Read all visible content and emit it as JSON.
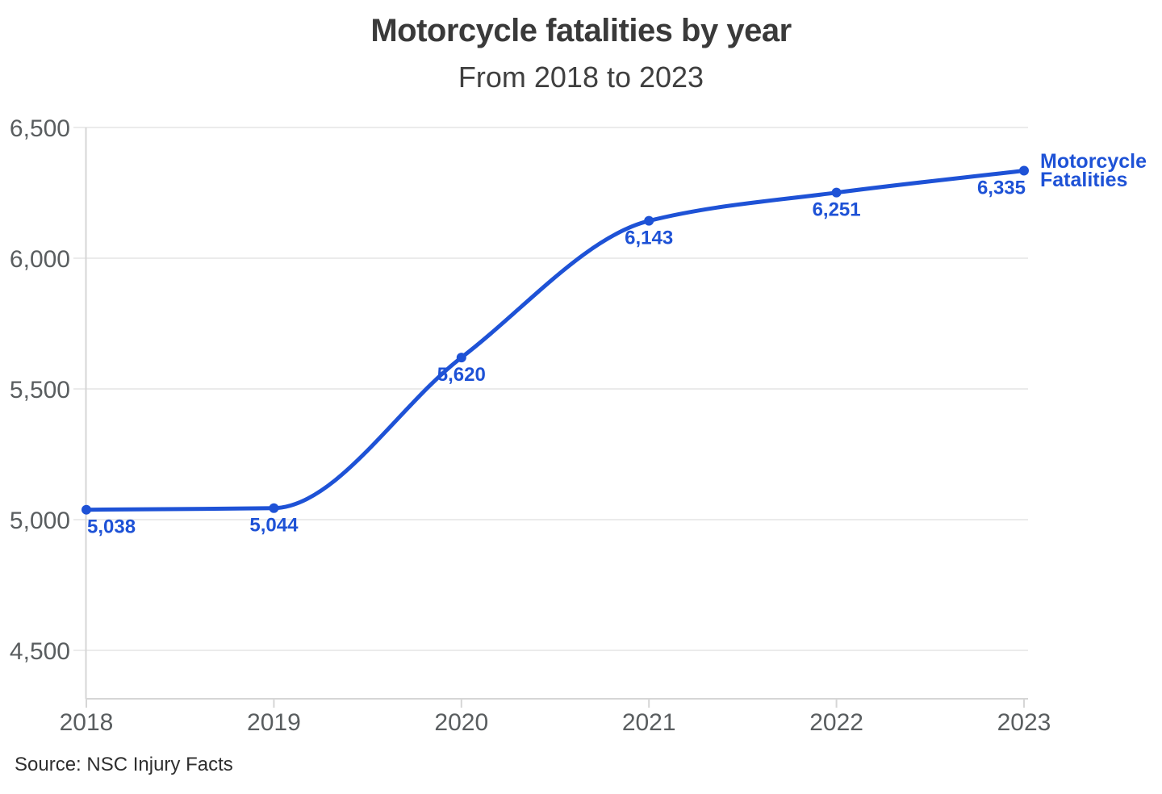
{
  "header": {
    "title": "Motorcycle fatalities by year",
    "subtitle": "From 2018 to 2023"
  },
  "legend": {
    "label": "Motorcycle Fatalities"
  },
  "footer": {
    "source": "Source: NSC Injury Facts"
  },
  "chart_data": {
    "type": "line",
    "title": "Motorcycle fatalities by year",
    "subtitle": "From 2018 to 2023",
    "categories": [
      "2018",
      "2019",
      "2020",
      "2021",
      "2022",
      "2023"
    ],
    "series": [
      {
        "name": "Motorcycle Fatalities",
        "values": [
          5038,
          5044,
          5620,
          6143,
          6251,
          6335
        ],
        "labels": [
          "5,038",
          "5,044",
          "5,620",
          "6,143",
          "6,251",
          "6,335"
        ],
        "color": "#1e52d6"
      }
    ],
    "y_ticks": [
      {
        "value": 6500,
        "label": "6,500"
      },
      {
        "value": 6000,
        "label": "6,000"
      },
      {
        "value": 5500,
        "label": "5,500"
      },
      {
        "value": 5000,
        "label": "5,000"
      },
      {
        "value": 4500,
        "label": "4,500"
      }
    ],
    "ylim": [
      4500,
      6500
    ],
    "grid": "horizontal",
    "legend_position": "right",
    "source": "Source: NSC Injury Facts",
    "colors": {
      "accent": "#1e52d6",
      "grid": "#ebebeb",
      "axis": "#d6d6d6",
      "tick_text": "#595d5f",
      "title_text": "#3a3a3a"
    }
  }
}
